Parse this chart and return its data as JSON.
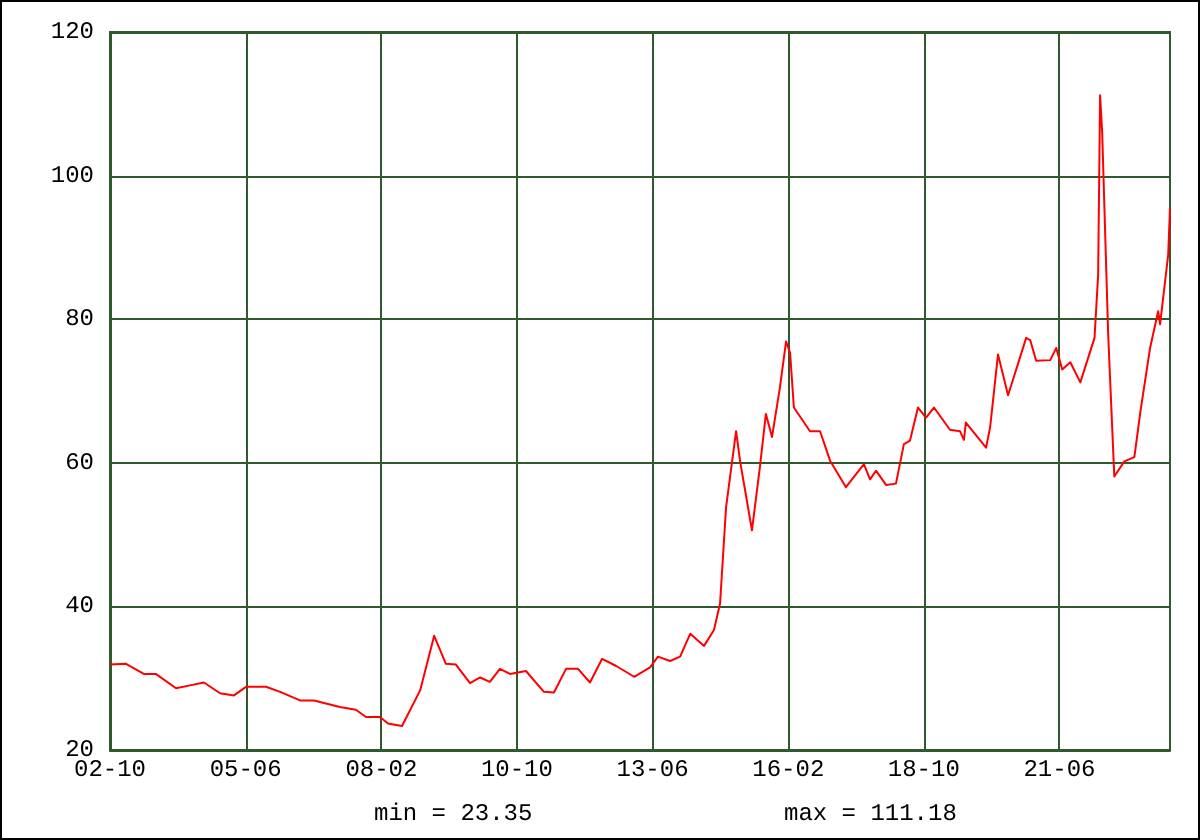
{
  "chart_data": {
    "type": "line",
    "x": [
      "2002-10-01",
      "2003-01-24",
      "2003-06-01",
      "2003-08-26",
      "2004-01-18",
      "2004-04-27",
      "2004-08-06",
      "2004-11-29",
      "2005-03-09",
      "2005-06-04",
      "2005-10-25",
      "2006-02-04",
      "2006-06-26",
      "2006-10-05",
      "2007-04-09",
      "2007-08-02",
      "2007-10-13",
      "2008-01-22",
      "2008-03-19",
      "2008-06-28",
      "2008-11-05",
      "2009-02-14",
      "2009-05-09",
      "2009-07-20",
      "2009-10-29",
      "2010-01-10",
      "2010-03-21",
      "2010-06-01",
      "2010-08-12",
      "2010-12-05",
      "2011-04-13",
      "2011-06-24",
      "2011-09-19",
      "2011-12-14",
      "2012-03-09",
      "2012-06-04",
      "2012-09-13",
      "2013-01-20",
      "2013-05-14",
      "2013-07-10",
      "2013-10-05",
      "2013-12-16",
      "2014-02-27",
      "2014-06-06",
      "2014-08-16",
      "2014-09-29",
      "2014-11-11",
      "2015-01-22",
      "2015-02-20",
      "2015-05-16",
      "2015-07-12",
      "2015-08-24",
      "2015-10-07",
      "2015-12-03",
      "2016-01-16",
      "2016-02-14",
      "2016-03-12",
      "2016-07-06",
      "2016-09-16",
      "2016-11-27",
      "2017-03-21",
      "2017-07-28",
      "2017-09-10",
      "2017-10-23",
      "2018-01-04",
      "2018-03-15",
      "2018-05-11",
      "2018-06-24",
      "2018-08-20",
      "2018-10-17",
      "2018-12-13",
      "2019-04-07",
      "2019-06-18",
      "2019-07-16",
      "2019-07-30",
      "2019-12-22",
      "2020-01-20",
      "2020-03-17",
      "2020-05-28",
      "2020-10-05",
      "2020-11-03",
      "2020-12-16",
      "2021-03-27",
      "2021-05-09",
      "2021-06-21",
      "2021-08-18",
      "2021-10-29",
      "2022-02-08",
      "2022-03-06",
      "2022-03-20",
      "2022-04-04",
      "2022-05-17",
      "2022-06-30",
      "2022-09-10",
      "2022-11-21",
      "2023-01-04",
      "2023-03-14",
      "2023-05-11",
      "2023-05-25",
      "2023-07-22",
      "2023-08-04"
    ],
    "series": [
      {
        "color": "#ff0000",
        "values": [
          31.9,
          32,
          30.6,
          30.6,
          28.6,
          29,
          29.4,
          27.9,
          27.6,
          28.8,
          28.8,
          28.1,
          26.9,
          26.9,
          26,
          25.6,
          24.6,
          24.6,
          23.7,
          23.35,
          28.3,
          35.9,
          32,
          31.9,
          29.3,
          30.1,
          29.5,
          31.3,
          30.6,
          31,
          28.1,
          28,
          31.3,
          31.3,
          29.4,
          32.7,
          31.7,
          30.2,
          31.5,
          33,
          32.4,
          33,
          36.2,
          34.5,
          36.7,
          40.4,
          53.8,
          64.4,
          60.2,
          50.6,
          59.4,
          66.8,
          63.6,
          70.5,
          76.9,
          75.3,
          67.7,
          64.4,
          64.4,
          60.3,
          56.6,
          59.8,
          57.7,
          58.9,
          56.9,
          57.1,
          62.6,
          63.1,
          67.7,
          66.3,
          67.7,
          64.6,
          64.4,
          63.2,
          65.6,
          62.1,
          64.9,
          75.1,
          69.4,
          77.4,
          77.1,
          74.2,
          74.3,
          76,
          73,
          74,
          71.2,
          77.4,
          86.2,
          111.18,
          106,
          77.9,
          58.1,
          60.2,
          60.8,
          67.2,
          76,
          81.1,
          79.3,
          89,
          95.5
        ]
      }
    ],
    "xlim": [
      "2002-10-01",
      "2023-08-04"
    ],
    "xticks": [
      {
        "value": "2002-10-01",
        "label": "02-10"
      },
      {
        "value": "2005-06-01",
        "label": "05-06"
      },
      {
        "value": "2008-02-01",
        "label": "08-02"
      },
      {
        "value": "2010-10-01",
        "label": "10-10"
      },
      {
        "value": "2013-06-01",
        "label": "13-06"
      },
      {
        "value": "2016-02-01",
        "label": "16-02"
      },
      {
        "value": "2018-10-01",
        "label": "18-10"
      },
      {
        "value": "2021-06-01",
        "label": "21-06"
      }
    ],
    "ylim": [
      20,
      120
    ],
    "yticks": [
      20,
      40,
      60,
      80,
      100,
      120
    ],
    "grid": true,
    "marker": "none",
    "line_style": "solid",
    "annotations": [
      "min = 23.35",
      "max = 111.18"
    ]
  }
}
